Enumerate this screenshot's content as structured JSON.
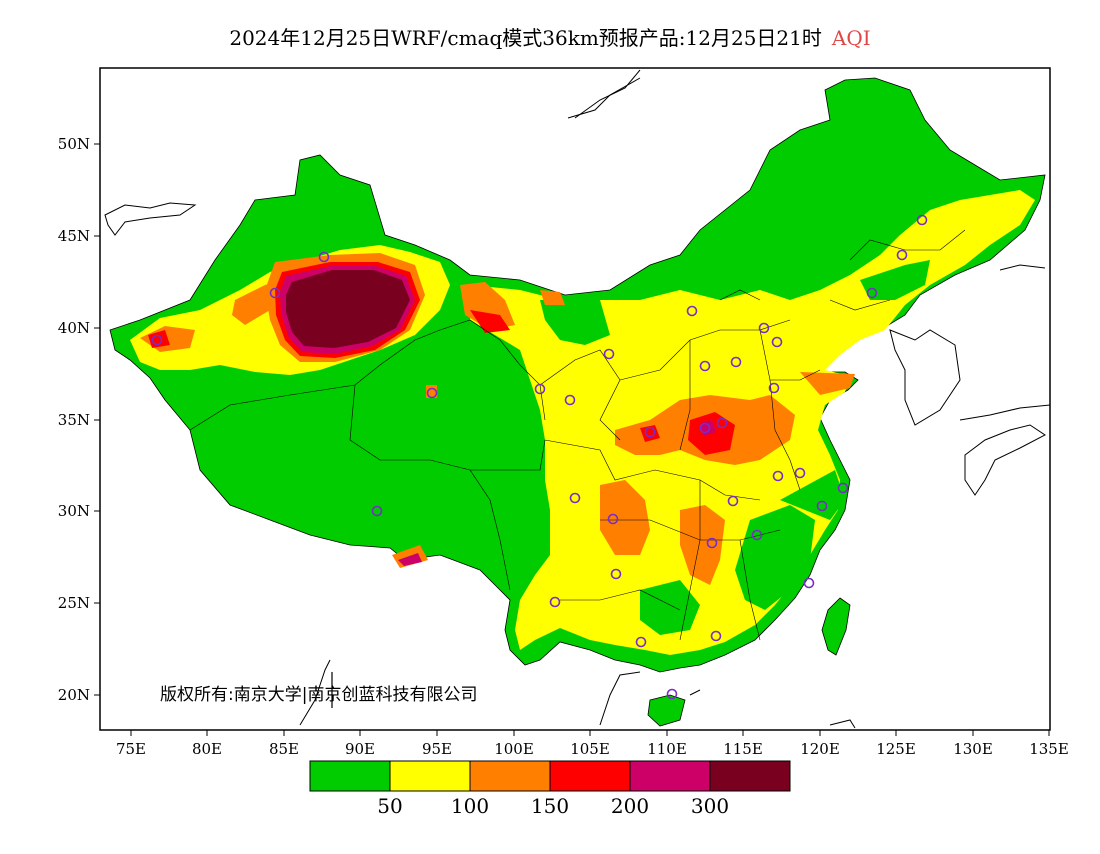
{
  "title": {
    "main": "2024年12月25日WRF/cmaq模式36km预报产品:12月25日21时",
    "variable": "AQI"
  },
  "copyright": "版权所有:南京大学|南京创蓝科技有限公司",
  "axes": {
    "lat_labels": [
      "50N",
      "45N",
      "40N",
      "35N",
      "30N",
      "25N",
      "20N"
    ],
    "lon_labels": [
      "75E",
      "80E",
      "85E",
      "90E",
      "95E",
      "100E",
      "105E",
      "110E",
      "115E",
      "120E",
      "125E",
      "130E",
      "135E"
    ]
  },
  "colorbar": {
    "colors": [
      "#00cc00",
      "#ffff00",
      "#ff8000",
      "#ff0000",
      "#cc0066",
      "#7a0020"
    ],
    "labels": [
      "50",
      "100",
      "150",
      "200",
      "300"
    ]
  },
  "legend_colors": {
    "good": "#00cc00",
    "moderate": "#ffff00",
    "unhealthy_sensitive": "#ff8000",
    "unhealthy": "#ff0000",
    "very_unhealthy": "#cc0066",
    "hazardous": "#7a0020",
    "station_marker": "#7a2cc8"
  }
}
